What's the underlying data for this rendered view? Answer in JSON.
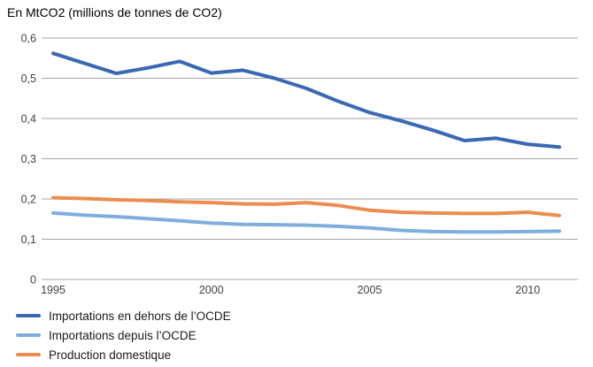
{
  "title": "En MtCO2 (millions de tonnes de CO2)",
  "chart_data": {
    "type": "line",
    "x": [
      1995,
      1996,
      1997,
      1998,
      1999,
      2000,
      2001,
      2002,
      2003,
      2004,
      2005,
      2006,
      2007,
      2008,
      2009,
      2010,
      2011
    ],
    "series": [
      {
        "name": "Importations en dehors de l’OCDE",
        "color": "#3A68B3",
        "values": [
          0.562,
          0.537,
          0.512,
          0.526,
          0.542,
          0.513,
          0.52,
          0.5,
          0.475,
          0.443,
          0.415,
          0.394,
          0.371,
          0.345,
          0.351,
          0.336,
          0.329
        ]
      },
      {
        "name": "Importations depuis l’OCDE",
        "color": "#7FAEDC",
        "values": [
          0.165,
          0.16,
          0.156,
          0.151,
          0.146,
          0.14,
          0.137,
          0.136,
          0.135,
          0.132,
          0.128,
          0.122,
          0.119,
          0.118,
          0.118,
          0.119,
          0.12
        ]
      },
      {
        "name": "Production domestique",
        "color": "#EC8C4E",
        "values": [
          0.203,
          0.201,
          0.198,
          0.196,
          0.193,
          0.191,
          0.188,
          0.187,
          0.191,
          0.184,
          0.172,
          0.167,
          0.165,
          0.164,
          0.164,
          0.167,
          0.159
        ]
      }
    ],
    "ylim": [
      0,
      0.6
    ],
    "ytick_values": [
      0,
      0.1,
      0.2,
      0.3,
      0.4,
      0.5,
      0.6
    ],
    "ytick_labels": [
      "0",
      "0,1",
      "0,2",
      "0,3",
      "0,4",
      "0,5",
      "0,6"
    ],
    "xticks": [
      1995,
      2000,
      2005,
      2010
    ],
    "grid": true,
    "legend_position": "bottom-left",
    "grid_color": "#A6A6A6",
    "tick_color": "#404040"
  }
}
